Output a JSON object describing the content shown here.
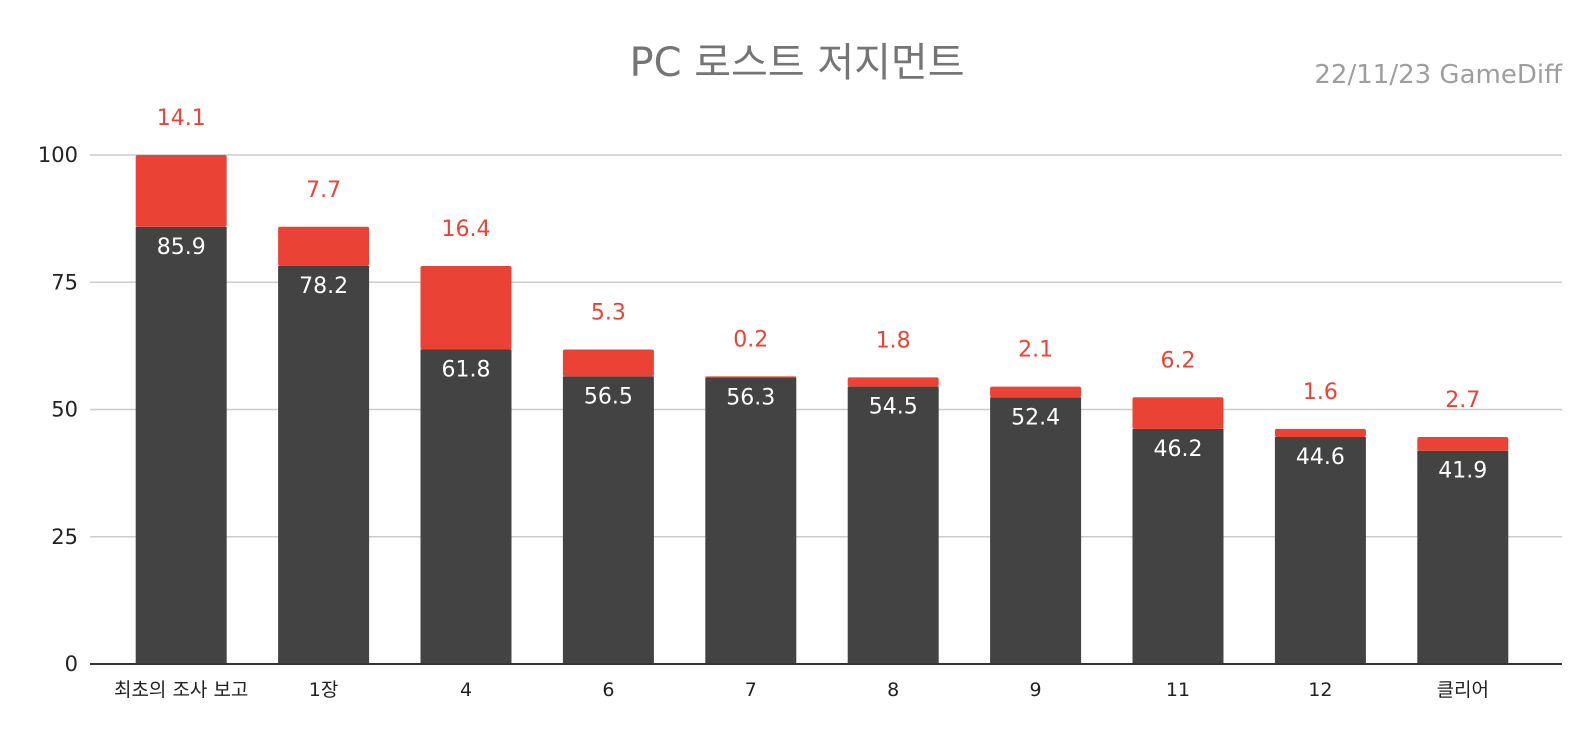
{
  "chart_data": {
    "type": "bar",
    "stacked": true,
    "title": "PC 로스트 저지먼트",
    "source": "22/11/23  GameDiff",
    "categories": [
      "최초의 조사 보고",
      "1장",
      "4",
      "6",
      "7",
      "8",
      "9",
      "11",
      "12",
      "클리어"
    ],
    "series": [
      {
        "color": "#434343",
        "values": [
          85.9,
          78.2,
          61.8,
          56.5,
          56.3,
          54.5,
          52.4,
          46.2,
          44.6,
          41.9
        ]
      },
      {
        "color": "#ea4335",
        "values": [
          14.1,
          7.7,
          16.4,
          5.3,
          0.2,
          1.8,
          2.1,
          6.2,
          1.6,
          2.7
        ]
      }
    ],
    "ylim": [
      0,
      100
    ],
    "yticks": [
      0,
      25,
      50,
      75,
      100
    ],
    "grid": true,
    "legend": "none"
  }
}
